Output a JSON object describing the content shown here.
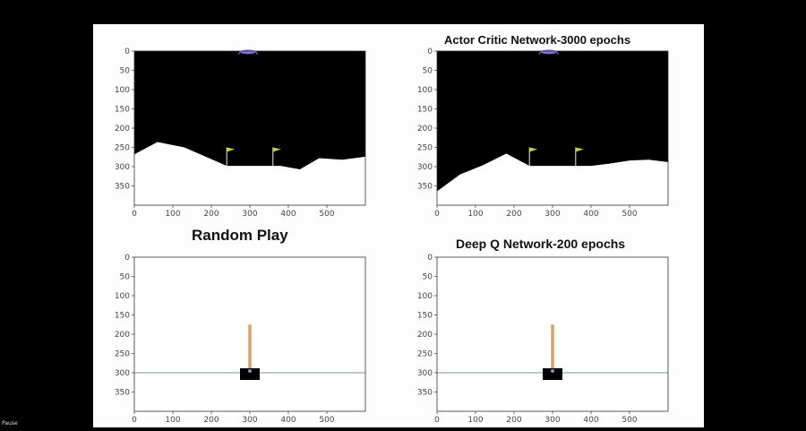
{
  "titles": {
    "top_right": "Actor Critic Network-3000 epochs",
    "bottom_left": "Random Play",
    "bottom_right": "Deep Q Network-200 epochs"
  },
  "player": {
    "pause_label": "Pause"
  },
  "axes": {
    "x_ticks": [
      "0",
      "100",
      "200",
      "300",
      "400",
      "500"
    ],
    "y_ticks_top": [
      "0",
      "50",
      "100",
      "150",
      "200",
      "250",
      "300",
      "350"
    ],
    "y_ticks_bottom": [
      "0",
      "50",
      "100",
      "150",
      "200",
      "250",
      "300",
      "350"
    ]
  },
  "colors": {
    "lander_sky": "#000000",
    "terrain": "#ffffff",
    "lander_body": "#7f72d8",
    "flag": "#c8cc3a",
    "pole": "#d9a06a",
    "cart": "#000000",
    "track": "#9aa6bd"
  },
  "chart_data": [
    {
      "type": "image",
      "name": "lunar-lander-top-left",
      "xlim": [
        0,
        600
      ],
      "ylim": [
        400,
        0
      ],
      "terrain": [
        [
          0,
          268
        ],
        [
          60,
          236
        ],
        [
          130,
          250
        ],
        [
          240,
          298
        ],
        [
          320,
          298
        ],
        [
          380,
          298
        ],
        [
          430,
          307
        ],
        [
          480,
          278
        ],
        [
          540,
          282
        ],
        [
          600,
          274
        ]
      ],
      "flags_x": [
        240,
        360
      ],
      "lander_x": 295
    },
    {
      "type": "image",
      "name": "lunar-lander-top-right",
      "xlim": [
        0,
        600
      ],
      "ylim": [
        400,
        0
      ],
      "terrain": [
        [
          0,
          364
        ],
        [
          60,
          320
        ],
        [
          120,
          296
        ],
        [
          180,
          266
        ],
        [
          240,
          298
        ],
        [
          330,
          298
        ],
        [
          400,
          298
        ],
        [
          450,
          292
        ],
        [
          500,
          284
        ],
        [
          550,
          282
        ],
        [
          600,
          288
        ]
      ],
      "flags_x": [
        240,
        360
      ],
      "lander_x": 290
    },
    {
      "type": "image",
      "name": "cartpole-random-play",
      "xlim": [
        0,
        600
      ],
      "ylim": [
        400,
        0
      ],
      "track_y": 300,
      "cart_x": 300,
      "pole_top": [
        300,
        175
      ]
    },
    {
      "type": "image",
      "name": "cartpole-deep-q",
      "xlim": [
        0,
        600
      ],
      "ylim": [
        400,
        0
      ],
      "track_y": 300,
      "cart_x": 300,
      "pole_top": [
        300,
        175
      ]
    }
  ]
}
